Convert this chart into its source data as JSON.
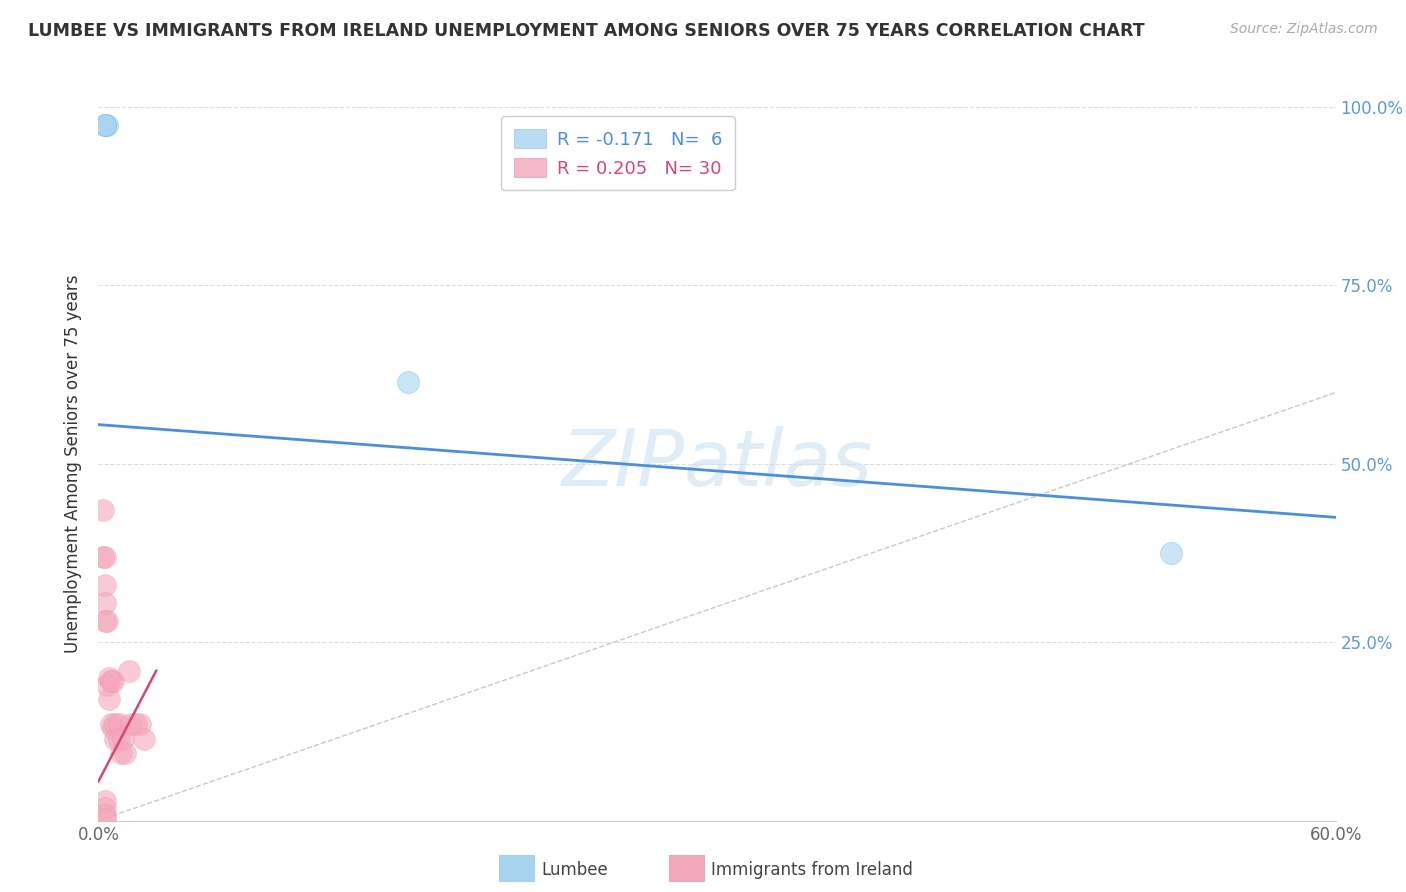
{
  "title": "LUMBEE VS IMMIGRANTS FROM IRELAND UNEMPLOYMENT AMONG SENIORS OVER 75 YEARS CORRELATION CHART",
  "source": "Source: ZipAtlas.com",
  "ylabel_label": "Unemployment Among Seniors over 75 years",
  "x_min": 0.0,
  "x_max": 0.6,
  "y_min": 0.0,
  "y_max": 1.0,
  "ytick_positions": [
    0.0,
    0.25,
    0.5,
    0.75,
    1.0
  ],
  "ytick_labels": [
    "",
    "25.0%",
    "50.0%",
    "75.0%",
    "100.0%"
  ],
  "xtick_positions": [
    0.0,
    0.1,
    0.2,
    0.3,
    0.4,
    0.5,
    0.6
  ],
  "xtick_labels": [
    "0.0%",
    "",
    "",
    "",
    "",
    "",
    "60.0%"
  ],
  "watermark": "ZIPatlas",
  "lumbee_R": -0.171,
  "lumbee_N": 6,
  "ireland_R": 0.205,
  "ireland_N": 30,
  "lumbee_color": "#a8d4f0",
  "ireland_color": "#f4a7bb",
  "lumbee_line_color": "#4a90d9",
  "ireland_line_color": "#d44878",
  "ireland_line_dashed_color": "#f0b8c8",
  "diagonal_color": "#c8c8c8",
  "lumbee_points_x": [
    0.003,
    0.004,
    0.003,
    0.003,
    0.15,
    0.52
  ],
  "lumbee_points_y": [
    0.975,
    0.975,
    0.975,
    0.975,
    0.615,
    0.375
  ],
  "ireland_points_x": [
    0.002,
    0.002,
    0.003,
    0.003,
    0.003,
    0.003,
    0.004,
    0.004,
    0.005,
    0.005,
    0.006,
    0.006,
    0.007,
    0.007,
    0.008,
    0.008,
    0.01,
    0.01,
    0.011,
    0.012,
    0.013,
    0.015,
    0.016,
    0.018,
    0.02,
    0.022,
    0.003,
    0.003,
    0.003,
    0.003
  ],
  "ireland_points_y": [
    0.435,
    0.37,
    0.37,
    0.33,
    0.305,
    0.28,
    0.28,
    0.19,
    0.2,
    0.17,
    0.195,
    0.135,
    0.195,
    0.13,
    0.135,
    0.115,
    0.135,
    0.115,
    0.095,
    0.115,
    0.095,
    0.21,
    0.135,
    0.135,
    0.135,
    0.115,
    0.028,
    0.018,
    0.008,
    0.002
  ],
  "lumbee_line_x": [
    0.0,
    0.6
  ],
  "lumbee_line_y": [
    0.555,
    0.425
  ],
  "ireland_line_x": [
    0.0,
    0.028
  ],
  "ireland_line_y": [
    0.055,
    0.21
  ]
}
